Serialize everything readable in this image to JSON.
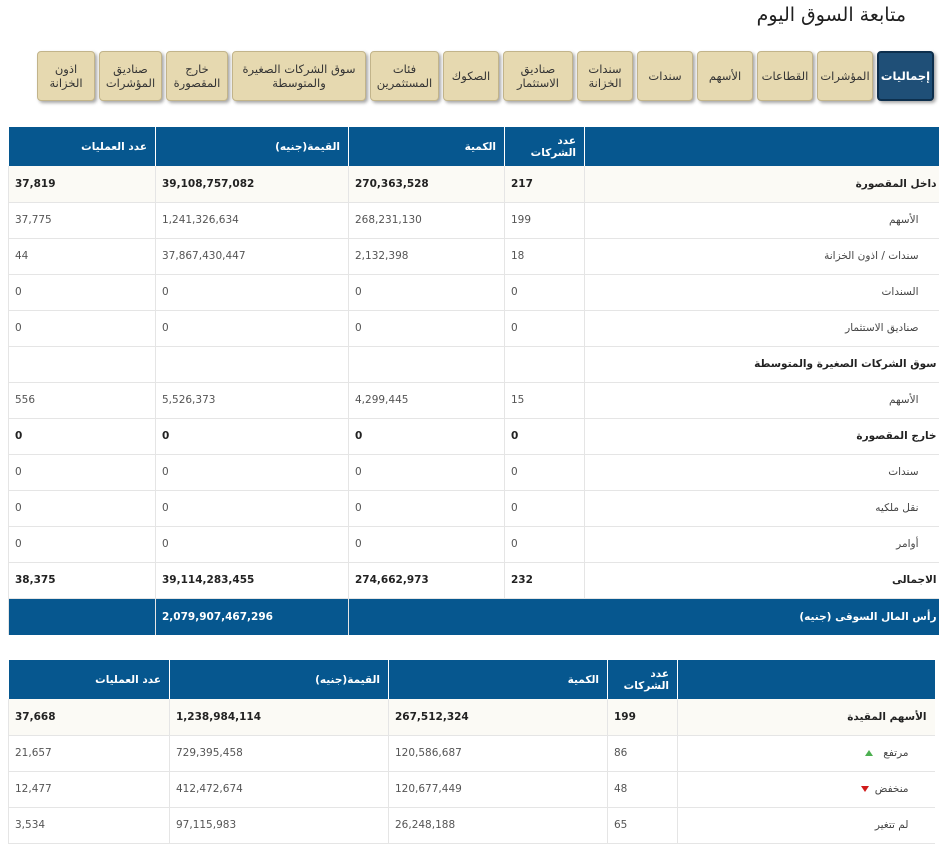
{
  "page": {
    "title": "متابعة السوق اليوم"
  },
  "tabs": [
    {
      "label": "إجماليات",
      "active": true
    },
    {
      "label": "المؤشرات"
    },
    {
      "label": "القطاعات"
    },
    {
      "label": "الأسهم"
    },
    {
      "label": "سندات"
    },
    {
      "label": "سندات الخزانة"
    },
    {
      "label": "صناديق الاستثمار"
    },
    {
      "label": "الصكوك"
    },
    {
      "label": "فئات المستثمرين"
    },
    {
      "label": "سوق الشركات الصغيرة والمتوسطة"
    },
    {
      "label": "خارج المقصورة"
    },
    {
      "label": "صناديق المؤشرات"
    },
    {
      "label": "اذون الخزانة"
    }
  ],
  "summary": {
    "headers": {
      "label": "",
      "companies": "عدد الشركات",
      "quantity": "الكمية",
      "value": "القيمة(جنيه)",
      "trades": "عدد العمليات"
    },
    "rows": [
      {
        "label": "داخل المقصورة",
        "companies": "217",
        "quantity": "270,363,528",
        "value": "39,108,757,082",
        "trades": "37,819"
      },
      {
        "label": "الأسهم",
        "companies": "199",
        "quantity": "268,231,130",
        "value": "1,241,326,634",
        "trades": "37,775"
      },
      {
        "label": "سندات / اذون الخزانة",
        "companies": "18",
        "quantity": "2,132,398",
        "value": "37,867,430,447",
        "trades": "44"
      },
      {
        "label": "السندات",
        "companies": "0",
        "quantity": "0",
        "value": "0",
        "trades": "0"
      },
      {
        "label": "صناديق الاستثمار",
        "companies": "0",
        "quantity": "0",
        "value": "0",
        "trades": "0"
      },
      {
        "label": "سوق الشركات الصغيرة والمتوسطة",
        "companies": "",
        "quantity": "",
        "value": "",
        "trades": ""
      },
      {
        "label": "الأسهم",
        "companies": "15",
        "quantity": "4,299,445",
        "value": "5,526,373",
        "trades": "556"
      },
      {
        "label": "خارج المقصورة",
        "companies": "0",
        "quantity": "0",
        "value": "0",
        "trades": "0"
      },
      {
        "label": "سندات",
        "companies": "0",
        "quantity": "0",
        "value": "0",
        "trades": "0"
      },
      {
        "label": "نقل ملكيه",
        "companies": "0",
        "quantity": "0",
        "value": "0",
        "trades": "0"
      },
      {
        "label": "أوامر",
        "companies": "0",
        "quantity": "0",
        "value": "0",
        "trades": "0"
      },
      {
        "label": "الاجمالى",
        "companies": "232",
        "quantity": "274,662,973",
        "value": "39,114,283,455",
        "trades": "38,375"
      }
    ],
    "market_cap": {
      "label": "رأس المال السوقى (جنيه)",
      "value": "2,079,907,467,296"
    }
  },
  "stocks": {
    "headers": {
      "label": "",
      "companies": "عدد الشركات",
      "quantity": "الكمية",
      "value": "القيمة(جنيه)",
      "trades": "عدد العمليات"
    },
    "rows": [
      {
        "label": "الأسهم المقيدة",
        "companies": "199",
        "quantity": "267,512,324",
        "value": "1,238,984,114",
        "trades": "37,668"
      },
      {
        "label": "مرتفع",
        "companies": "86",
        "quantity": "120,586,687",
        "value": "729,395,458",
        "trades": "21,657"
      },
      {
        "label": "منخفض",
        "companies": "48",
        "quantity": "120,677,449",
        "value": "412,472,674",
        "trades": "12,477"
      },
      {
        "label": "لم تتغير",
        "companies": "65",
        "quantity": "26,248,188",
        "value": "97,115,983",
        "trades": "3,534"
      }
    ]
  },
  "colors": {
    "header": "#06578f",
    "tab_bg": "#e6d9b0",
    "tab_active": "#1f4f77",
    "up": "#4caf50",
    "down": "#d11a1a"
  }
}
